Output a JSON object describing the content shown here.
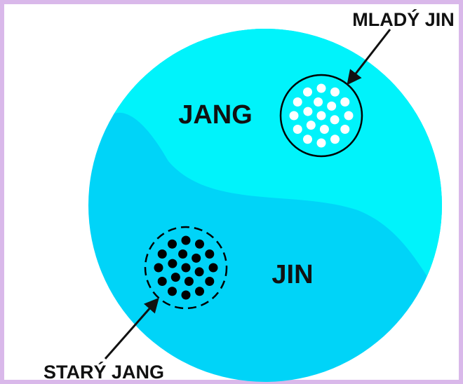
{
  "labels": {
    "jang": "JANG",
    "jin": "JIN",
    "mlady_jin": "MLADÝ JIN",
    "stary_jang": "STARÝ JANG"
  },
  "colors": {
    "frame": "#d9b8ea",
    "jang_region": "#00f3fb",
    "jin_region": "#00d4f8",
    "white_dots": "#ffffff",
    "black_dots": "#000000",
    "text": "#111111"
  }
}
